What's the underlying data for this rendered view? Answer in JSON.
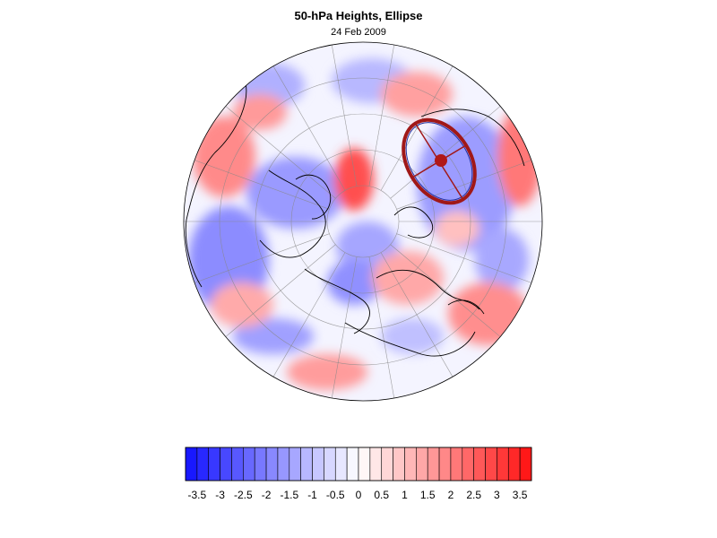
{
  "title": "50-hPa Heights, Ellipse",
  "date": "24 Feb 2009",
  "colors": {
    "negative_max": "#1010ff",
    "positive_max": "#ff1010",
    "ellipse": "#a01818",
    "ellipse_inner": "#2030a0",
    "coast": "#000000",
    "grid": "#888888"
  },
  "colorbar": {
    "min": -3.75,
    "max": 3.75,
    "step": 0.25,
    "labels": [
      "-3.5",
      "-3",
      "-2.5",
      "-2",
      "-1.5",
      "-1",
      "-0.5",
      "0",
      "0.5",
      "1",
      "1.5",
      "2",
      "2.5",
      "3",
      "3.5"
    ]
  }
}
